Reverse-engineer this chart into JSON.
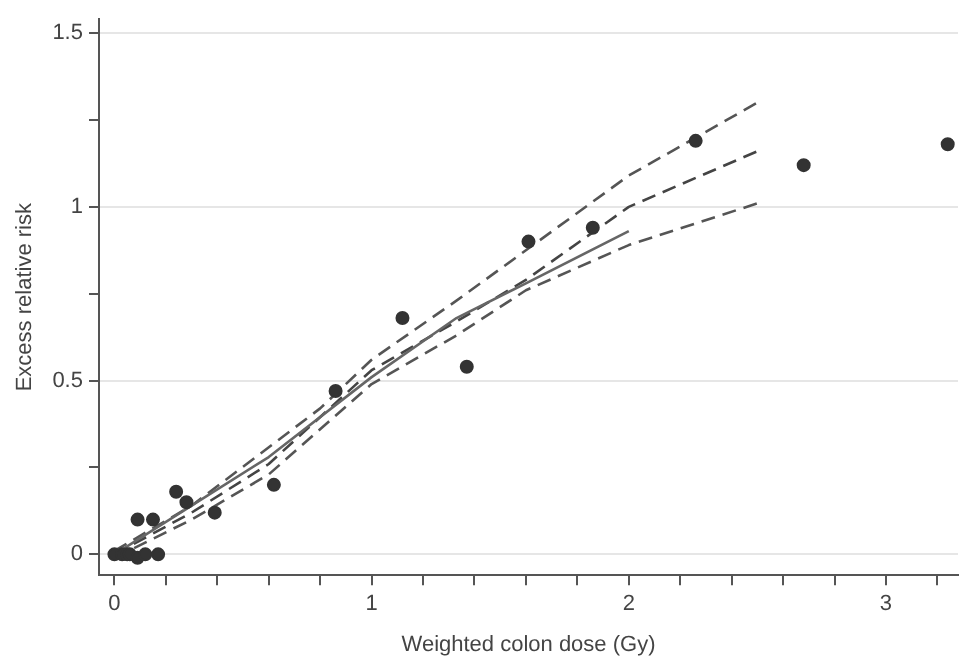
{
  "chart_data": {
    "type": "scatter",
    "xlabel": "Weighted colon dose (Gy)",
    "ylabel": "Excess relative risk",
    "xlim": [
      -0.06,
      3.28
    ],
    "ylim": [
      -0.06,
      1.54
    ],
    "xticks": [
      0,
      {
        "value": 0.2,
        "label": null
      },
      {
        "value": 0.4,
        "label": null
      },
      {
        "value": 0.6,
        "label": null
      },
      {
        "value": 0.8,
        "label": null
      },
      1,
      {
        "value": 1.2,
        "label": null
      },
      {
        "value": 1.4,
        "label": null
      },
      {
        "value": 1.6,
        "label": null
      },
      {
        "value": 1.8,
        "label": null
      },
      2,
      {
        "value": 2.2,
        "label": null
      },
      {
        "value": 2.4,
        "label": null
      },
      {
        "value": 2.6,
        "label": null
      },
      {
        "value": 2.8,
        "label": null
      },
      3,
      {
        "value": 3.2,
        "label": null
      }
    ],
    "yticks": [
      0,
      {
        "value": 0.25,
        "label": null
      },
      0.5,
      {
        "value": 0.75,
        "label": null
      },
      1,
      {
        "value": 1.25,
        "label": null
      },
      1.5
    ],
    "grid": "y",
    "legend": false,
    "series": [
      {
        "type": "scatter",
        "color": "#333333",
        "marker": "circle",
        "x": [
          0,
          0.02,
          0.03,
          0.05,
          0.06,
          0.09,
          0.12,
          0.17,
          0.09,
          0.15,
          0.24,
          0.28,
          0.39,
          0.62,
          0.86,
          1.12,
          1.37,
          1.61,
          1.86,
          2.26,
          2.68,
          3.24
        ],
        "values": [
          0,
          null,
          0,
          0,
          0,
          -0.01,
          0,
          0,
          0.1,
          0.1,
          0.18,
          0.15,
          0.12,
          0.2,
          0.47,
          0.68,
          0.54,
          0.9,
          0.94,
          1.19,
          1.12,
          1.18
        ]
      },
      {
        "type": "line",
        "color": "#666666",
        "line_style": "solid",
        "marker": "none",
        "x": [
          0,
          0.3,
          0.6,
          1,
          1.33,
          1.6,
          2
        ],
        "values": [
          0,
          0.14,
          0.28,
          0.51,
          0.68,
          0.78,
          0.93
        ]
      },
      {
        "type": "line",
        "color": "#444444",
        "line_style": "dashed",
        "marker": "none",
        "x": [
          0,
          0.3,
          0.6,
          1,
          1.33,
          1.6,
          2,
          2.5
        ],
        "values": [
          0,
          0.12,
          0.26,
          0.53,
          0.67,
          0.79,
          1.0,
          1.16
        ]
      },
      {
        "type": "line",
        "color": "#555555",
        "line_style": "dashed",
        "marker": "none",
        "x": [
          0,
          0.3,
          0.8,
          1,
          1.33,
          2,
          2.5
        ],
        "values": [
          0.01,
          0.14,
          0.42,
          0.56,
          0.73,
          1.09,
          1.3
        ]
      },
      {
        "type": "line",
        "color": "#555555",
        "line_style": "dashed",
        "marker": "none",
        "x": [
          0,
          0.3,
          0.6,
          1,
          1.33,
          1.6,
          2,
          2.5
        ],
        "values": [
          -0.01,
          0.1,
          0.23,
          0.49,
          0.63,
          0.76,
          0.89,
          1.01
        ]
      }
    ]
  }
}
